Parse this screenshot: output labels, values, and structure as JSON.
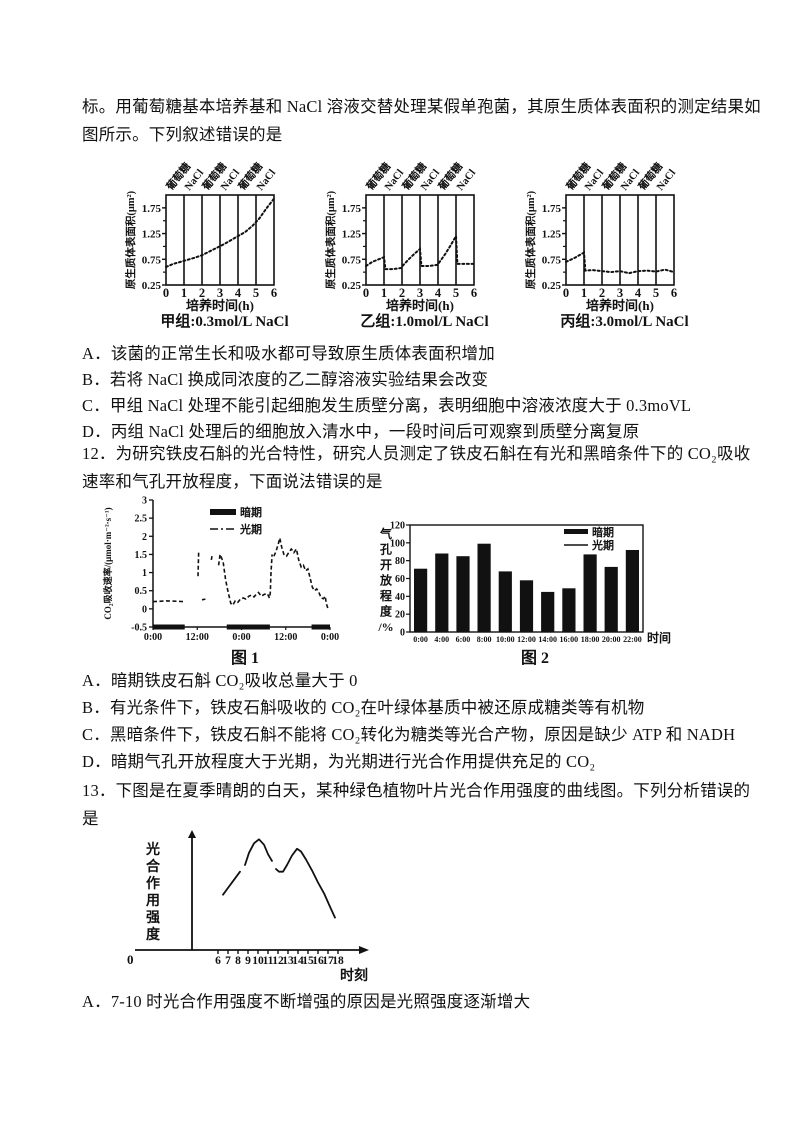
{
  "colors": {
    "ink": "#111111",
    "paper": "#ffffff"
  },
  "q11": {
    "stem": [
      "标。用葡萄糖基本培养基和 NaCl 溶液交替处理某假单孢菌，其原生质体表面积的测定结果如",
      "图所示。下列叙述错误的是"
    ],
    "options": [
      "A．该菌的正常生长和吸水都可导致原生质体表面积增加",
      "B．若将 NaCl 换成同浓度的乙二醇溶液实验结果会改变",
      "C．甲组 NaCl 处理不能引起细胞发生质壁分离，表明细胞中溶液浓度大于 0.3moVL",
      "D．丙组 NaCl 处理后的细胞放入清水中，一段时间后可观察到质壁分离复原"
    ]
  },
  "q12": {
    "stem": [
      "12．为研究铁皮石斛的光合特性，研究人员测定了铁皮石斛在有光和黑暗条件下的 CO₂吸收",
      "速率和气孔开放程度，下面说法错误的是"
    ],
    "options": [
      "A．暗期铁皮石斛 CO₂吸收总量大于 0",
      "B．有光条件下，铁皮石斛吸收的 CO₂在叶绿体基质中被还原成糖类等有机物",
      "C．黑暗条件下，铁皮石斛不能将 CO₂转化为糖类等光合产物，原因是缺少 ATP 和 NADH",
      "D．暗期气孔开放程度大于光期，为光期进行光合作用提供充足的 CO₂"
    ]
  },
  "q13": {
    "stem": [
      "13．下图是在夏季晴朗的白天，某种绿色植物叶片光合作用强度的曲线图。下列分析错误的",
      "是"
    ],
    "option_a": "A．7-10 时光合作用强度不断增强的原因是光照强度逐渐增大"
  },
  "chart_data": [
    {
      "id": "jia",
      "kind": "phase",
      "type": "scatter",
      "title": "甲组:0.3mol/L NaCl",
      "xlabel": "培养时间(h)",
      "ylabel": "原生质体表面积(μm²)",
      "xlim": [
        0,
        6
      ],
      "ylim": [
        0.25,
        2.0
      ],
      "xticks": [
        0,
        1,
        2,
        3,
        4,
        5,
        6
      ],
      "yticks": [
        0.25,
        0.75,
        1.25,
        1.75
      ],
      "phase_labels": [
        "葡萄糖",
        "NaCl",
        "葡萄糖",
        "NaCl",
        "葡萄糖",
        "NaCl"
      ],
      "points": [
        [
          0,
          0.6
        ],
        [
          0.4,
          0.66
        ],
        [
          0.8,
          0.7
        ],
        [
          1.2,
          0.74
        ],
        [
          1.6,
          0.78
        ],
        [
          2.0,
          0.83
        ],
        [
          2.4,
          0.9
        ],
        [
          2.8,
          0.97
        ],
        [
          3.2,
          1.04
        ],
        [
          3.6,
          1.12
        ],
        [
          4.0,
          1.2
        ],
        [
          4.4,
          1.28
        ],
        [
          4.8,
          1.4
        ],
        [
          5.2,
          1.55
        ],
        [
          5.6,
          1.75
        ],
        [
          6.0,
          1.93
        ]
      ]
    },
    {
      "id": "yi",
      "kind": "phase",
      "type": "scatter",
      "title": "乙组:1.0mol/L NaCl",
      "xlabel": "培养时间(h)",
      "ylabel": "原生质体表面积(μm²)",
      "xlim": [
        0,
        6
      ],
      "ylim": [
        0.25,
        2.0
      ],
      "xticks": [
        0,
        1,
        2,
        3,
        4,
        5,
        6
      ],
      "yticks": [
        0.25,
        0.75,
        1.25,
        1.75
      ],
      "phase_labels": [
        "葡萄糖",
        "NaCl",
        "葡萄糖",
        "NaCl",
        "葡萄糖",
        "NaCl"
      ],
      "points": [
        [
          0,
          0.62
        ],
        [
          0.35,
          0.7
        ],
        [
          0.7,
          0.75
        ],
        [
          1.0,
          0.79
        ],
        [
          1.08,
          0.56
        ],
        [
          1.5,
          0.56
        ],
        [
          1.95,
          0.58
        ],
        [
          2.05,
          0.63
        ],
        [
          2.4,
          0.76
        ],
        [
          2.7,
          0.86
        ],
        [
          3.0,
          0.95
        ],
        [
          3.08,
          0.62
        ],
        [
          3.5,
          0.62
        ],
        [
          3.95,
          0.64
        ],
        [
          4.05,
          0.68
        ],
        [
          4.4,
          0.85
        ],
        [
          4.7,
          1.02
        ],
        [
          5.0,
          1.2
        ],
        [
          5.08,
          0.66
        ],
        [
          5.5,
          0.66
        ],
        [
          6.0,
          0.66
        ]
      ]
    },
    {
      "id": "bing",
      "kind": "phase",
      "type": "scatter",
      "title": "丙组:3.0mol/L NaCl",
      "xlabel": "培养时间(h)",
      "ylabel": "原生质体表面积(μm²)",
      "xlim": [
        0,
        6
      ],
      "ylim": [
        0.25,
        2.0
      ],
      "xticks": [
        0,
        1,
        2,
        3,
        4,
        5,
        6
      ],
      "yticks": [
        0.25,
        0.75,
        1.25,
        1.75
      ],
      "phase_labels": [
        "葡萄糖",
        "NaCl",
        "葡萄糖",
        "NaCl",
        "葡萄糖",
        "NaCl"
      ],
      "points": [
        [
          0,
          0.7
        ],
        [
          0.5,
          0.78
        ],
        [
          1.0,
          0.88
        ],
        [
          1.08,
          0.53
        ],
        [
          1.5,
          0.54
        ],
        [
          2.0,
          0.52
        ],
        [
          2.5,
          0.5
        ],
        [
          3.0,
          0.52
        ],
        [
          3.5,
          0.48
        ],
        [
          4.0,
          0.52
        ],
        [
          4.5,
          0.53
        ],
        [
          5.0,
          0.51
        ],
        [
          5.5,
          0.55
        ],
        [
          6.0,
          0.5
        ]
      ]
    },
    {
      "id": "fig1",
      "kind": "co2",
      "type": "line",
      "title": "图 1",
      "ylabel": "CO₂吸收速率/(μmol·m⁻²·s⁻¹)",
      "ylim": [
        -0.5,
        3
      ],
      "yticks": [
        3,
        2.5,
        2,
        1.5,
        1,
        0.5,
        0,
        -0.5
      ],
      "x_span_hours": 48,
      "xtick_labels": [
        "0:00",
        "12:00",
        "0:00",
        "12:00",
        "0:00"
      ],
      "legend": [
        "暗期",
        "光期"
      ],
      "dark_periods_hours": [
        [
          0,
          8.6
        ],
        [
          20,
          31.7
        ],
        [
          43,
          48
        ]
      ],
      "segments": [
        [
          [
            0,
            0.2
          ],
          [
            4,
            0.22
          ],
          [
            8.6,
            0.2
          ]
        ],
        [
          [
            12.2,
            0.9
          ],
          [
            12.4,
            1.6
          ]
        ],
        [
          [
            13.3,
            0.25
          ],
          [
            14.2,
            0.27
          ]
        ],
        [
          [
            15.8,
            1.35
          ],
          [
            16,
            1.45
          ]
        ],
        [
          [
            17.8,
            1.2
          ],
          [
            18.2,
            1.5
          ],
          [
            19,
            1.3
          ],
          [
            19.7,
            0.8
          ],
          [
            20.4,
            0.45
          ],
          [
            21.1,
            0.15
          ],
          [
            21.6,
            0.1
          ],
          [
            22.3,
            0.22
          ],
          [
            23,
            0.18
          ],
          [
            23.8,
            0.28
          ],
          [
            24.5,
            0.3
          ],
          [
            25.2,
            0.27
          ],
          [
            26,
            0.35
          ],
          [
            26.7,
            0.38
          ],
          [
            27.4,
            0.33
          ],
          [
            28,
            0.4
          ],
          [
            28.6,
            0.45
          ],
          [
            29.4,
            0.35
          ],
          [
            30.2,
            0.4
          ],
          [
            31,
            0.42
          ],
          [
            31.6,
            0.3
          ],
          [
            31.8,
            0.45
          ],
          [
            32,
            1.0
          ],
          [
            32.3,
            1.5
          ]
        ],
        [
          [
            32.8,
            1.45
          ],
          [
            33.4,
            1.6
          ],
          [
            34,
            1.8
          ],
          [
            34.4,
            1.95
          ],
          [
            34.9,
            1.7
          ],
          [
            35.5,
            1.5
          ],
          [
            36.2,
            1.45
          ],
          [
            36.8,
            1.55
          ],
          [
            37.5,
            1.65
          ],
          [
            38.2,
            1.55
          ],
          [
            38.9,
            1.65
          ],
          [
            39.5,
            1.35
          ],
          [
            40.2,
            1.15
          ],
          [
            40.8,
            1.2
          ],
          [
            41.4,
            1.05
          ],
          [
            42,
            1.1
          ],
          [
            42.6,
            0.85
          ],
          [
            43.2,
            0.6
          ],
          [
            43.8,
            0.5
          ],
          [
            44.4,
            0.55
          ],
          [
            45,
            0.45
          ],
          [
            45.6,
            0.3
          ],
          [
            46.2,
            0.28
          ],
          [
            46.7,
            0.35
          ],
          [
            47,
            0.15
          ],
          [
            47.4,
            0.02
          ]
        ]
      ]
    },
    {
      "id": "fig2",
      "kind": "stomata",
      "type": "bar",
      "title": "图 2",
      "ylabel": "气孔开放程度/%",
      "ylabel_chars": [
        "气",
        "孔",
        "开",
        "放",
        "程",
        "度",
        "/%"
      ],
      "xlabel": "时间",
      "ylim": [
        0,
        120
      ],
      "yticks": [
        0,
        20,
        40,
        60,
        80,
        100,
        120
      ],
      "legend": [
        "暗期",
        "光期"
      ],
      "categories": [
        "0:00",
        "4:00",
        "6:00",
        "8:00",
        "10:00",
        "12:00",
        "14:00",
        "16:00",
        "18:00",
        "20:00",
        "22:00"
      ],
      "values": [
        71,
        88,
        85,
        99,
        68,
        58,
        45,
        49,
        87,
        73,
        92
      ]
    },
    {
      "id": "fig3",
      "kind": "daily",
      "type": "line",
      "title": "",
      "ylabel": "光合作用强度",
      "xlabel": "时刻",
      "origin_label": "0",
      "xticks": [
        6,
        7,
        8,
        9,
        10,
        11,
        12,
        13,
        14,
        15,
        16,
        17,
        18
      ],
      "segments": [
        [
          [
            6.5,
            0.41
          ],
          [
            7.0,
            0.46
          ],
          [
            7.6,
            0.52
          ],
          [
            8.2,
            0.58
          ]
        ],
        [
          [
            8.7,
            0.63
          ],
          [
            9.1,
            0.72
          ],
          [
            9.6,
            0.79
          ],
          [
            10.1,
            0.82
          ],
          [
            10.6,
            0.78
          ],
          [
            11.0,
            0.71
          ],
          [
            11.4,
            0.66
          ]
        ],
        [
          [
            11.8,
            0.6
          ],
          [
            12.1,
            0.58
          ],
          [
            12.5,
            0.58
          ],
          [
            12.9,
            0.63
          ],
          [
            13.4,
            0.7
          ],
          [
            13.9,
            0.75
          ],
          [
            14.3,
            0.73
          ],
          [
            14.8,
            0.67
          ],
          [
            15.4,
            0.59
          ],
          [
            16.0,
            0.5
          ],
          [
            16.6,
            0.42
          ],
          [
            17.2,
            0.32
          ],
          [
            17.7,
            0.24
          ]
        ]
      ]
    }
  ]
}
